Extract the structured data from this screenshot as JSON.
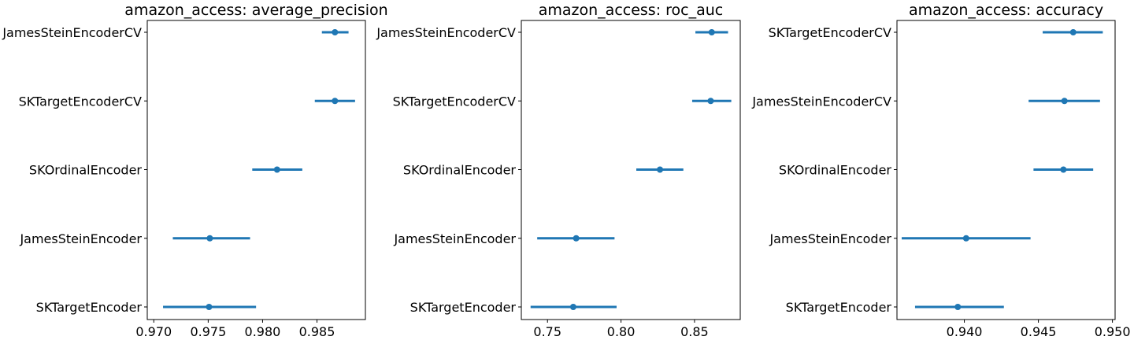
{
  "chart_data": [
    {
      "type": "errorbar",
      "title": "amazon_access: average_precision",
      "categories": [
        "JamesSteinEncoderCV",
        "SKTargetEncoderCV",
        "SKOrdinalEncoder",
        "JamesSteinEncoder",
        "SKTargetEncoder"
      ],
      "means": [
        0.98665,
        0.98665,
        0.98133,
        0.97515,
        0.97508
      ],
      "lower": [
        0.98545,
        0.9848,
        0.97905,
        0.97175,
        0.97085
      ],
      "upper": [
        0.9879,
        0.9885,
        0.98365,
        0.97885,
        0.9794
      ],
      "xlim": [
        0.9694,
        0.98945
      ],
      "xticks": [
        0.97,
        0.975,
        0.98,
        0.985
      ],
      "xtick_labels": [
        "0.970",
        "0.975",
        "0.980",
        "0.985"
      ],
      "color": "#1f77b4"
    },
    {
      "type": "errorbar",
      "title": "amazon_access: roc_auc",
      "categories": [
        "JamesSteinEncoderCV",
        "SKTargetEncoderCV",
        "SKOrdinalEncoder",
        "JamesSteinEncoder",
        "SKTargetEncoder"
      ],
      "means": [
        0.8617,
        0.861,
        0.8265,
        0.7695,
        0.7675
      ],
      "lower": [
        0.8506,
        0.8484,
        0.8104,
        0.743,
        0.7385
      ],
      "upper": [
        0.8728,
        0.875,
        0.8424,
        0.7956,
        0.797
      ],
      "xlim": [
        0.7322,
        0.8811
      ],
      "xticks": [
        0.75,
        0.8,
        0.85
      ],
      "xtick_labels": [
        "0.75",
        "0.80",
        "0.85"
      ],
      "color": "#1f77b4"
    },
    {
      "type": "errorbar",
      "title": "amazon_access: accuracy",
      "categories": [
        "SKTargetEncoderCV",
        "JamesSteinEncoderCV",
        "SKOrdinalEncoder",
        "JamesSteinEncoder",
        "SKTargetEncoder"
      ],
      "means": [
        0.94735,
        0.94676,
        0.94669,
        0.94012,
        0.93956
      ],
      "lower": [
        0.94529,
        0.94434,
        0.94467,
        0.93577,
        0.93667
      ],
      "upper": [
        0.94935,
        0.94916,
        0.9487,
        0.94447,
        0.94267
      ],
      "xlim": [
        0.93545,
        0.95018
      ],
      "xticks": [
        0.94,
        0.945,
        0.95
      ],
      "xtick_labels": [
        "0.940",
        "0.945",
        "0.950"
      ],
      "color": "#1f77b4"
    }
  ]
}
